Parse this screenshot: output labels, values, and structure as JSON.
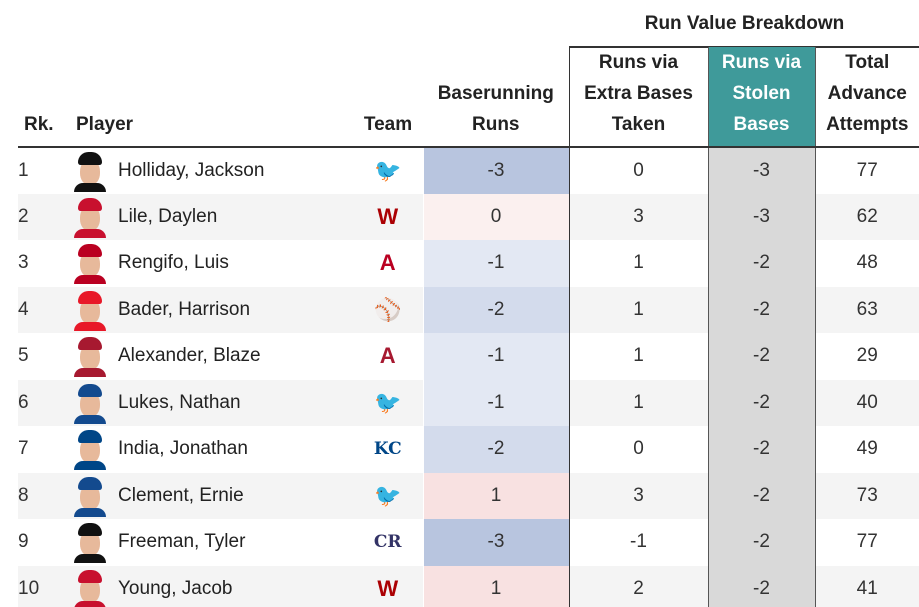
{
  "super_header": "Run Value Breakdown",
  "columns": {
    "rank": "Rk.",
    "player": "Player",
    "team": "Team",
    "baserunning_runs": [
      "Baserunning",
      "Runs"
    ],
    "extra_bases": [
      "Runs via",
      "Extra Bases",
      "Taken"
    ],
    "stolen_bases": [
      "Runs via",
      "Stolen",
      "Bases"
    ],
    "advance_attempts": [
      "Total",
      "Advance",
      "Attempts"
    ]
  },
  "colors": {
    "stolen_header": "#3f9a9a",
    "stolen_column": "#d9d9d9",
    "neg3": "#b8c5df",
    "neg2": "#d3dbec",
    "neg1": "#e3e8f3",
    "zero": "#fbf0ef",
    "pos1": "#f8e1e1"
  },
  "rows": [
    {
      "rank": "1",
      "player": "Holliday, Jackson",
      "team_icon": "orioles-logo",
      "team_glyph": "🐦",
      "team_color": "#df4601",
      "cap_color": "#111111",
      "baserunning_runs": "-3",
      "br_color": "#b8c5df",
      "extra_bases": "0",
      "stolen_bases": "-3",
      "advance_attempts": "77"
    },
    {
      "rank": "2",
      "player": "Lile, Daylen",
      "team_icon": "nationals-logo",
      "team_glyph": "W",
      "team_color": "#ab0003",
      "cap_color": "#c8102e",
      "baserunning_runs": "0",
      "br_color": "#fbf0ef",
      "extra_bases": "3",
      "stolen_bases": "-3",
      "advance_attempts": "62"
    },
    {
      "rank": "3",
      "player": "Rengifo, Luis",
      "team_icon": "angels-logo",
      "team_glyph": "A",
      "team_color": "#ba0021",
      "cap_color": "#ba0021",
      "baserunning_runs": "-1",
      "br_color": "#e3e8f3",
      "extra_bases": "1",
      "stolen_bases": "-2",
      "advance_attempts": "48"
    },
    {
      "rank": "4",
      "player": "Bader, Harrison",
      "team_icon": "mlb-logo",
      "team_glyph": "⚾",
      "team_color": "#3aa6a6",
      "cap_color": "#e81828",
      "baserunning_runs": "-2",
      "br_color": "#d3dbec",
      "extra_bases": "1",
      "stolen_bases": "-2",
      "advance_attempts": "63"
    },
    {
      "rank": "5",
      "player": "Alexander, Blaze",
      "team_icon": "diamondbacks-logo",
      "team_glyph": "A",
      "team_color": "#a71930",
      "cap_color": "#a71930",
      "baserunning_runs": "-1",
      "br_color": "#e3e8f3",
      "extra_bases": "1",
      "stolen_bases": "-2",
      "advance_attempts": "29"
    },
    {
      "rank": "6",
      "player": "Lukes, Nathan",
      "team_icon": "blue-jays-logo",
      "team_glyph": "🐦",
      "team_color": "#134a8e",
      "cap_color": "#134a8e",
      "baserunning_runs": "-1",
      "br_color": "#e3e8f3",
      "extra_bases": "1",
      "stolen_bases": "-2",
      "advance_attempts": "40"
    },
    {
      "rank": "7",
      "player": "India, Jonathan",
      "team_icon": "royals-logo",
      "team_glyph": "KC",
      "team_color": "#004687",
      "cap_color": "#004687",
      "baserunning_runs": "-2",
      "br_color": "#d3dbec",
      "extra_bases": "0",
      "stolen_bases": "-2",
      "advance_attempts": "49"
    },
    {
      "rank": "8",
      "player": "Clement, Ernie",
      "team_icon": "blue-jays-logo",
      "team_glyph": "🐦",
      "team_color": "#134a8e",
      "cap_color": "#134a8e",
      "baserunning_runs": "1",
      "br_color": "#f8e1e1",
      "extra_bases": "3",
      "stolen_bases": "-2",
      "advance_attempts": "73"
    },
    {
      "rank": "9",
      "player": "Freeman, Tyler",
      "team_icon": "rockies-logo",
      "team_glyph": "CR",
      "team_color": "#333366",
      "cap_color": "#111111",
      "baserunning_runs": "-3",
      "br_color": "#b8c5df",
      "extra_bases": "-1",
      "stolen_bases": "-2",
      "advance_attempts": "77"
    },
    {
      "rank": "10",
      "player": "Young, Jacob",
      "team_icon": "nationals-logo",
      "team_glyph": "W",
      "team_color": "#ab0003",
      "cap_color": "#c8102e",
      "baserunning_runs": "1",
      "br_color": "#f8e1e1",
      "extra_bases": "2",
      "stolen_bases": "-2",
      "advance_attempts": "41"
    }
  ]
}
